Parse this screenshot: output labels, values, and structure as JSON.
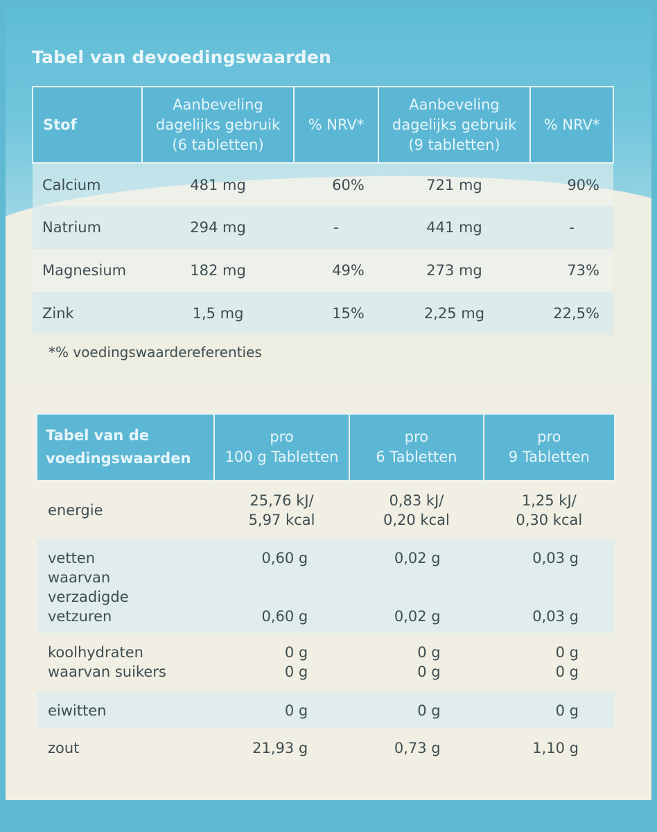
{
  "title": "Tabel van devoedingswaarden",
  "table1": {
    "headers": {
      "stof": "Stof",
      "aanb6_l1": "Aanbeveling",
      "aanb6_l2": "dagelijks gebruik",
      "aanb6_l3": "(6 tabletten)",
      "nrv": "% NRV*",
      "aanb9_l1": "Aanbeveling",
      "aanb9_l2": "dagelijks gebruik",
      "aanb9_l3": "(9 tabletten)"
    },
    "rows": [
      {
        "name": "Calcium",
        "a6": "481 mg",
        "p6": "60%",
        "a9": "721 mg",
        "p9": "90%"
      },
      {
        "name": "Natrium",
        "a6": "294 mg",
        "p6": "-",
        "a9": "441 mg",
        "p9": "-"
      },
      {
        "name": "Magnesium",
        "a6": "182 mg",
        "p6": "49%",
        "a9": "273 mg",
        "p9": "73%"
      },
      {
        "name": "Zink",
        "a6": "1,5 mg",
        "p6": "15%",
        "a9": "2,25 mg",
        "p9": "22,5%"
      }
    ],
    "footnote": "*% voedingswaardereferenties"
  },
  "table2": {
    "headers": {
      "label_l1": "Tabel van de",
      "label_l2": "voedingswaarden",
      "c1_l1": "pro",
      "c1_l2": "100 g Tabletten",
      "c2_l1": "pro",
      "c2_l2": "6 Tabletten",
      "c3_l1": "pro",
      "c3_l2": "9 Tabletten"
    },
    "energie": {
      "name": "energie",
      "c1_l1": "25,76 kJ/",
      "c1_l2": "5,97 kcal",
      "c2_l1": "0,83 kJ/",
      "c2_l2": "0,20 kcal",
      "c3_l1": "1,25 kJ/",
      "c3_l2": "0,30 kcal"
    },
    "vetten": {
      "name": "vetten",
      "sub1": "waarvan",
      "sub2": "verzadigde",
      "sub3": "vetzuren",
      "c1": "0,60 g",
      "c1s": "0,60 g",
      "c2": "0,02 g",
      "c2s": "0,02 g",
      "c3": "0,03 g",
      "c3s": "0,03 g"
    },
    "koolhydraten": {
      "name": "koolhydraten",
      "sub": "waarvan suikers",
      "c1": "0 g",
      "c1s": "0 g",
      "c2": "0 g",
      "c2s": "0 g",
      "c3": "0 g",
      "c3s": "0 g"
    },
    "eiwitten": {
      "name": "eiwitten",
      "c1": "0 g",
      "c2": "0 g",
      "c3": "0 g"
    },
    "zout": {
      "name": "zout",
      "c1": "21,93 g",
      "c2": "0,73 g",
      "c3": "1,10 g"
    }
  }
}
